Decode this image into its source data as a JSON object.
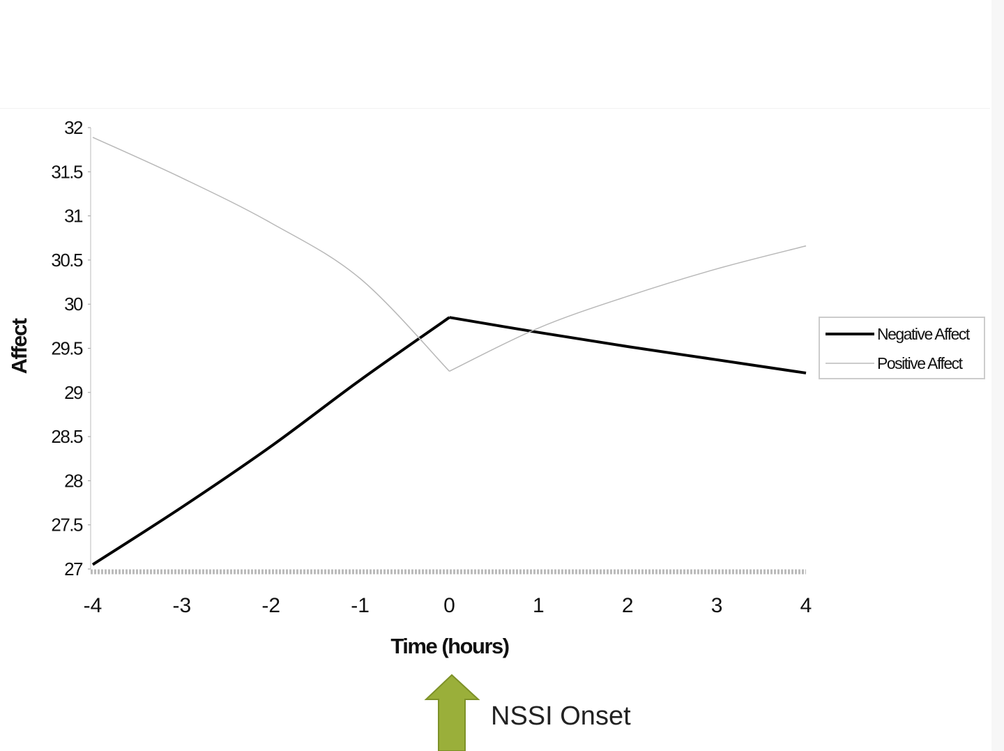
{
  "chart_data": {
    "type": "line",
    "title": "",
    "xlabel": "Time (hours)",
    "ylabel": "Affect",
    "x": [
      -4,
      -3,
      -2,
      -1,
      0,
      1,
      2,
      3,
      4
    ],
    "xticks": [
      "-4",
      "-3",
      "-2",
      "-1",
      "0",
      "1",
      "2",
      "3",
      "4"
    ],
    "yticks": [
      "27",
      "27.5",
      "28",
      "28.5",
      "29",
      "29.5",
      "30",
      "30.5",
      "31",
      "31.5",
      "32"
    ],
    "xlim": [
      -4,
      4
    ],
    "ylim": [
      27,
      32
    ],
    "grid": false,
    "legend_position": "right",
    "series": [
      {
        "name": "Negative Affect",
        "color": "#000000",
        "values": [
          27.05,
          27.7,
          28.39,
          29.14,
          29.85,
          29.68,
          29.52,
          29.37,
          29.22
        ]
      },
      {
        "name": "Positive Affect",
        "color": "#b0b0b0",
        "values": [
          31.89,
          31.43,
          30.92,
          30.29,
          29.24,
          29.73,
          30.09,
          30.4,
          30.66
        ]
      }
    ],
    "annotation": {
      "text": "NSSI Onset",
      "at_x": 0,
      "arrow_color": "#9aaf3a"
    }
  }
}
